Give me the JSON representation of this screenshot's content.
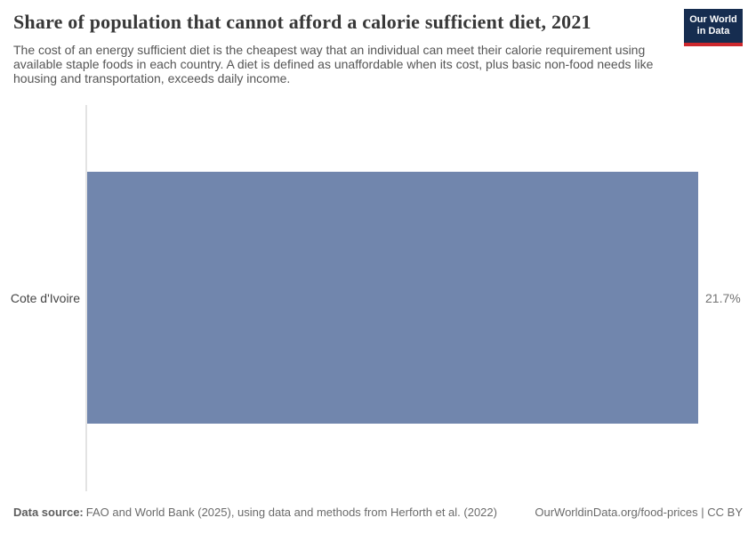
{
  "header": {
    "title": "Share of population that cannot afford a calorie sufficient diet, 2021",
    "subtitle": "The cost of an energy sufficient diet is the cheapest way that an individual can meet their calorie requirement using available staple foods in each country. A diet is defined as unaffordable when its cost, plus basic non-food needs like housing and transportation, exceeds daily income."
  },
  "logo": {
    "line1": "Our World",
    "line2": "in Data",
    "bg_color": "#162d50",
    "accent_color": "#cd282d"
  },
  "chart_data": {
    "type": "bar",
    "orientation": "horizontal",
    "title": "Share of population that cannot afford a calorie sufficient diet, 2021",
    "categories": [
      "Cote d'Ivoire"
    ],
    "values": [
      21.7
    ],
    "value_labels": [
      "21.7%"
    ],
    "xlabel": "",
    "ylabel": "",
    "xlim": [
      0,
      21.7
    ],
    "bar_color": "#7186ad",
    "axis_line_color": "#e3e3e3",
    "grid": false,
    "legend": false
  },
  "footer": {
    "source_label": "Data source:",
    "source_text": "FAO and World Bank (2025), using data and methods from Herforth et al. (2022)",
    "right_text": "OurWorldinData.org/food-prices | CC BY"
  }
}
